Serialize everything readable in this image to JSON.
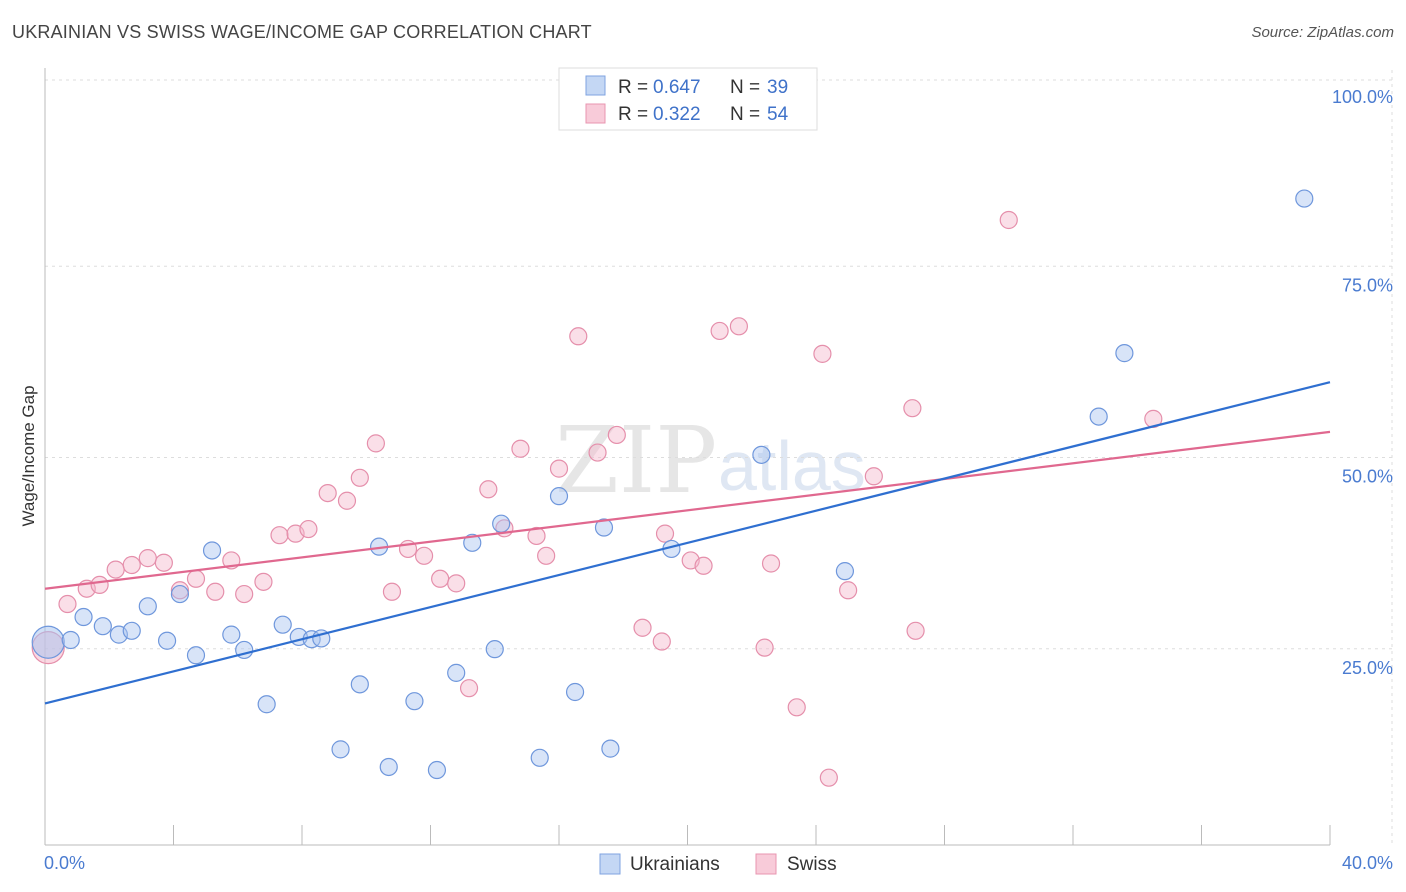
{
  "title": "UKRAINIAN VS SWISS WAGE/INCOME GAP CORRELATION CHART",
  "source": "Source: ZipAtlas.com",
  "chart_data": {
    "type": "scatter",
    "ylabel": "Wage/Income Gap",
    "xlim": [
      0,
      40
    ],
    "ylim": [
      0,
      105
    ],
    "x_ticks": [
      "0.0%",
      "40.0%"
    ],
    "y_ticks": [
      {
        "value": 25,
        "label": "25.0%"
      },
      {
        "value": 50,
        "label": "50.0%"
      },
      {
        "value": 75,
        "label": "75.0%"
      },
      {
        "value": 100,
        "label": "100.0%"
      }
    ],
    "legend_top": [
      {
        "r_label": "R =",
        "r": "0.647",
        "n_label": "N =",
        "n": "39"
      },
      {
        "r_label": "R =",
        "r": "0.322",
        "n_label": "N =",
        "n": "54"
      }
    ],
    "legend_bottom": "bottom-center",
    "colors": {
      "ukrainians": "#a9c4ef",
      "ukrainians_line": "#2f6fd0",
      "swiss": "#f5b8cb",
      "swiss_line": "#e0688f"
    },
    "series": [
      {
        "name": "Ukrainians",
        "trend": {
          "x": [
            0,
            40
          ],
          "y": [
            18.5,
            60.5
          ]
        },
        "points": [
          [
            0.1,
            26.5
          ],
          [
            0.8,
            26.8
          ],
          [
            1.2,
            29.8
          ],
          [
            1.8,
            28.6
          ],
          [
            2.3,
            27.5
          ],
          [
            2.7,
            28.0
          ],
          [
            3.2,
            31.2
          ],
          [
            3.8,
            26.7
          ],
          [
            4.2,
            32.8
          ],
          [
            4.7,
            24.8
          ],
          [
            5.2,
            38.5
          ],
          [
            5.8,
            27.5
          ],
          [
            6.2,
            25.5
          ],
          [
            6.9,
            18.4
          ],
          [
            7.4,
            28.8
          ],
          [
            7.9,
            27.2
          ],
          [
            8.3,
            26.9
          ],
          [
            8.6,
            27.0
          ],
          [
            9.2,
            12.5
          ],
          [
            9.8,
            21.0
          ],
          [
            10.4,
            39.0
          ],
          [
            10.7,
            10.2
          ],
          [
            11.5,
            18.8
          ],
          [
            12.2,
            9.8
          ],
          [
            12.8,
            22.5
          ],
          [
            13.3,
            39.5
          ],
          [
            14.2,
            42.0
          ],
          [
            14.0,
            25.6
          ],
          [
            15.4,
            11.4
          ],
          [
            16.0,
            45.6
          ],
          [
            16.5,
            20.0
          ],
          [
            17.4,
            41.5
          ],
          [
            17.6,
            12.6
          ],
          [
            19.5,
            38.7
          ],
          [
            22.3,
            51.0
          ],
          [
            24.9,
            35.8
          ],
          [
            32.8,
            56.0
          ],
          [
            33.6,
            64.3
          ],
          [
            39.2,
            84.5
          ]
        ]
      },
      {
        "name": "Swiss",
        "trend": {
          "x": [
            0,
            40
          ],
          "y": [
            33.5,
            54.0
          ]
        },
        "points": [
          [
            0.1,
            25.8
          ],
          [
            0.7,
            31.5
          ],
          [
            1.3,
            33.5
          ],
          [
            1.7,
            34.0
          ],
          [
            2.2,
            36.0
          ],
          [
            2.7,
            36.6
          ],
          [
            3.2,
            37.5
          ],
          [
            3.7,
            36.9
          ],
          [
            4.2,
            33.3
          ],
          [
            4.7,
            34.8
          ],
          [
            5.3,
            33.1
          ],
          [
            5.8,
            37.2
          ],
          [
            6.2,
            32.8
          ],
          [
            6.8,
            34.4
          ],
          [
            7.3,
            40.5
          ],
          [
            7.8,
            40.7
          ],
          [
            8.2,
            41.3
          ],
          [
            8.8,
            46.0
          ],
          [
            9.4,
            45.0
          ],
          [
            9.8,
            48.0
          ],
          [
            10.3,
            52.5
          ],
          [
            10.8,
            33.1
          ],
          [
            11.3,
            38.7
          ],
          [
            11.8,
            37.8
          ],
          [
            12.3,
            34.8
          ],
          [
            12.8,
            34.2
          ],
          [
            13.2,
            20.5
          ],
          [
            13.8,
            46.5
          ],
          [
            14.3,
            41.4
          ],
          [
            14.8,
            51.8
          ],
          [
            15.3,
            40.4
          ],
          [
            15.6,
            37.8
          ],
          [
            16.0,
            49.2
          ],
          [
            16.6,
            66.5
          ],
          [
            17.2,
            51.3
          ],
          [
            17.8,
            53.6
          ],
          [
            18.6,
            28.4
          ],
          [
            19.2,
            26.6
          ],
          [
            19.3,
            40.7
          ],
          [
            20.1,
            37.2
          ],
          [
            20.5,
            36.5
          ],
          [
            21.0,
            67.2
          ],
          [
            21.6,
            67.8
          ],
          [
            22.4,
            25.8
          ],
          [
            22.6,
            36.8
          ],
          [
            23.4,
            18.0
          ],
          [
            24.2,
            64.2
          ],
          [
            24.4,
            8.8
          ],
          [
            25.0,
            33.3
          ],
          [
            25.8,
            48.2
          ],
          [
            27.0,
            57.1
          ],
          [
            27.1,
            28.0
          ],
          [
            30.0,
            81.7
          ],
          [
            34.5,
            55.7
          ]
        ]
      }
    ],
    "legend_bottom_entries": [
      "Ukrainians",
      "Swiss"
    ]
  }
}
